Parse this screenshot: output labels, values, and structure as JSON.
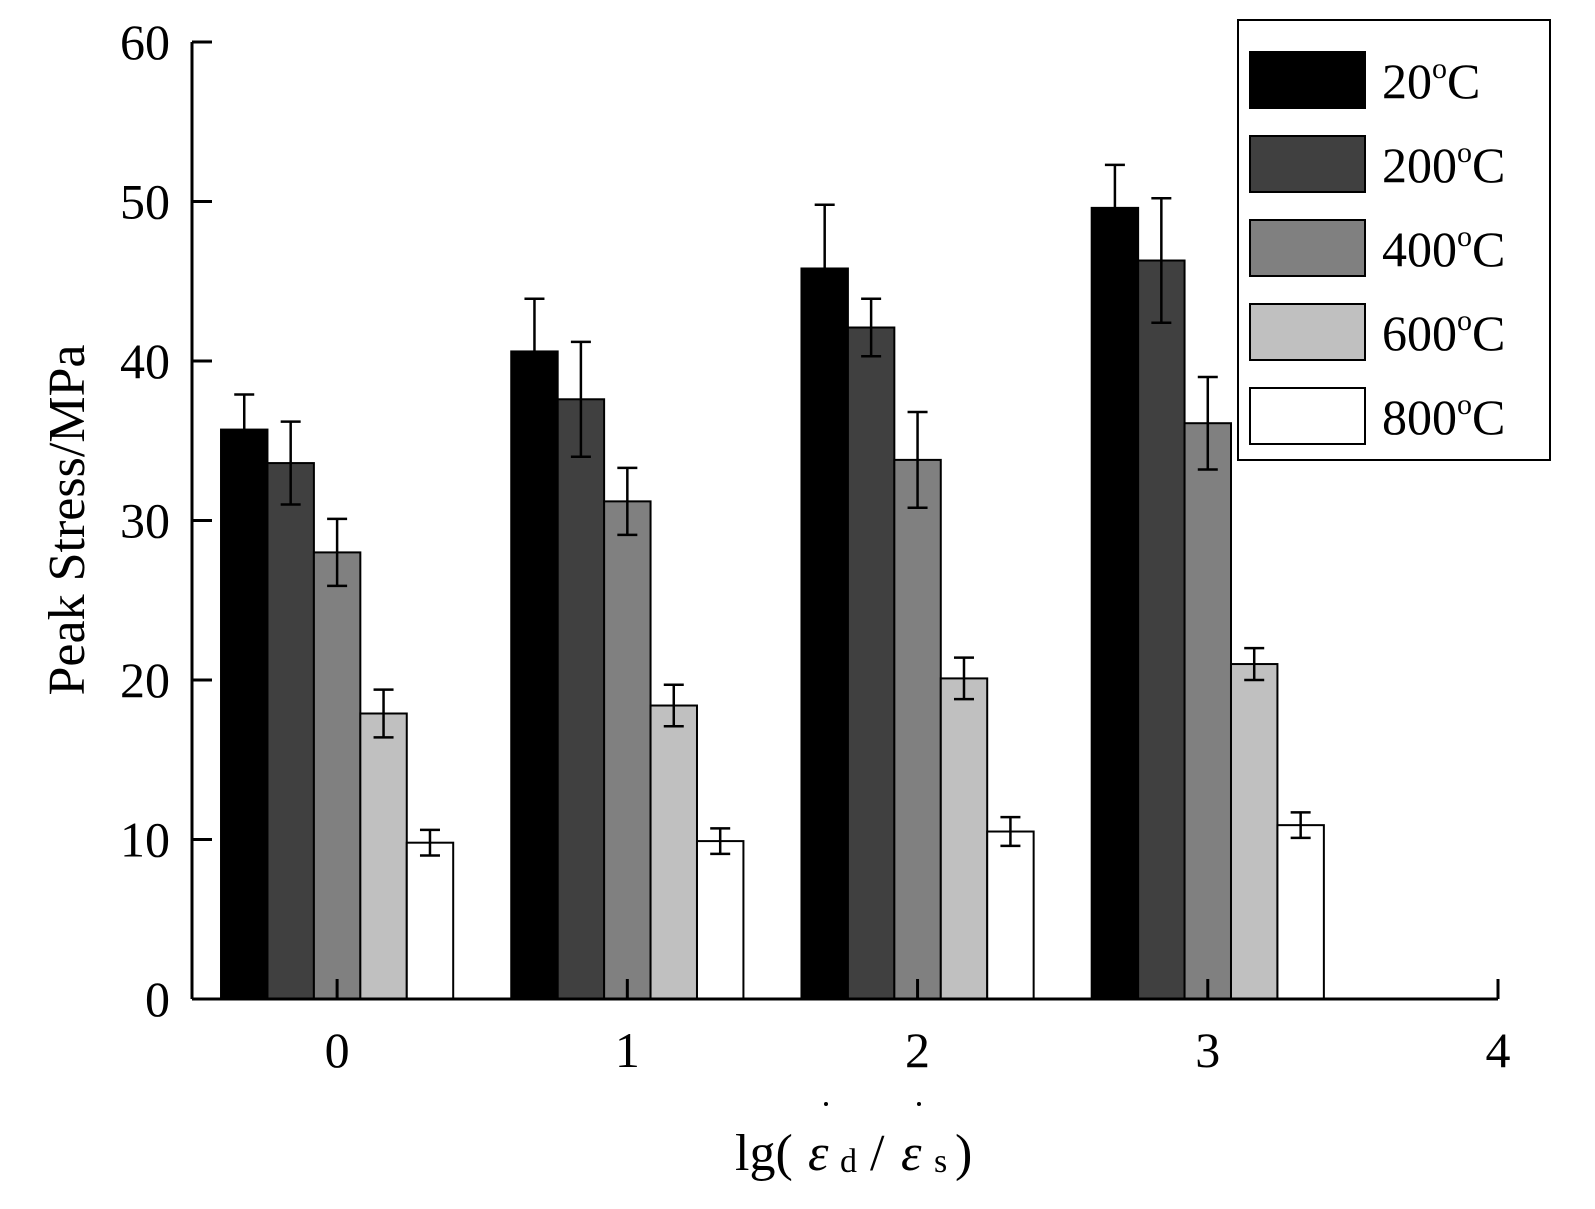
{
  "chart_data": {
    "type": "bar",
    "title": "",
    "ylabel": "Peak Stress/MPa",
    "xlabel": {
      "prefix": "lg(",
      "num_symbol": "ε",
      "num_sub": "d",
      "separator": "/",
      "den_symbol": "ε",
      "den_sub": "s",
      "suffix": ")"
    },
    "ylim": [
      0,
      60
    ],
    "yticks": [
      "0",
      "10",
      "20",
      "30",
      "40",
      "50",
      "60"
    ],
    "xlim": [
      -0.5,
      4
    ],
    "xticks": [
      "0",
      "1",
      "2",
      "3",
      "4"
    ],
    "categories": [
      0,
      1,
      2,
      3
    ],
    "legend_position": "top-right",
    "grid": false,
    "series": [
      {
        "name": "20",
        "color": "#000000",
        "values": [
          35.7,
          40.6,
          45.8,
          49.6
        ],
        "errors": [
          2.2,
          3.3,
          4.0,
          2.7
        ]
      },
      {
        "name": "200",
        "color": "#404040",
        "values": [
          33.6,
          37.6,
          42.1,
          46.3
        ],
        "errors": [
          2.6,
          3.6,
          1.8,
          3.9
        ]
      },
      {
        "name": "400",
        "color": "#808080",
        "values": [
          28.0,
          31.2,
          33.8,
          36.1
        ],
        "errors": [
          2.1,
          2.1,
          3.0,
          2.9
        ]
      },
      {
        "name": "600",
        "color": "#c0c0c0",
        "values": [
          17.9,
          18.4,
          20.1,
          21.0
        ],
        "errors": [
          1.5,
          1.3,
          1.3,
          1.0
        ]
      },
      {
        "name": "800",
        "color": "#ffffff",
        "values": [
          9.8,
          9.9,
          10.5,
          10.9
        ],
        "errors": [
          0.8,
          0.8,
          0.9,
          0.8
        ]
      }
    ],
    "legend_unit_sup": "o",
    "legend_unit": "C"
  }
}
